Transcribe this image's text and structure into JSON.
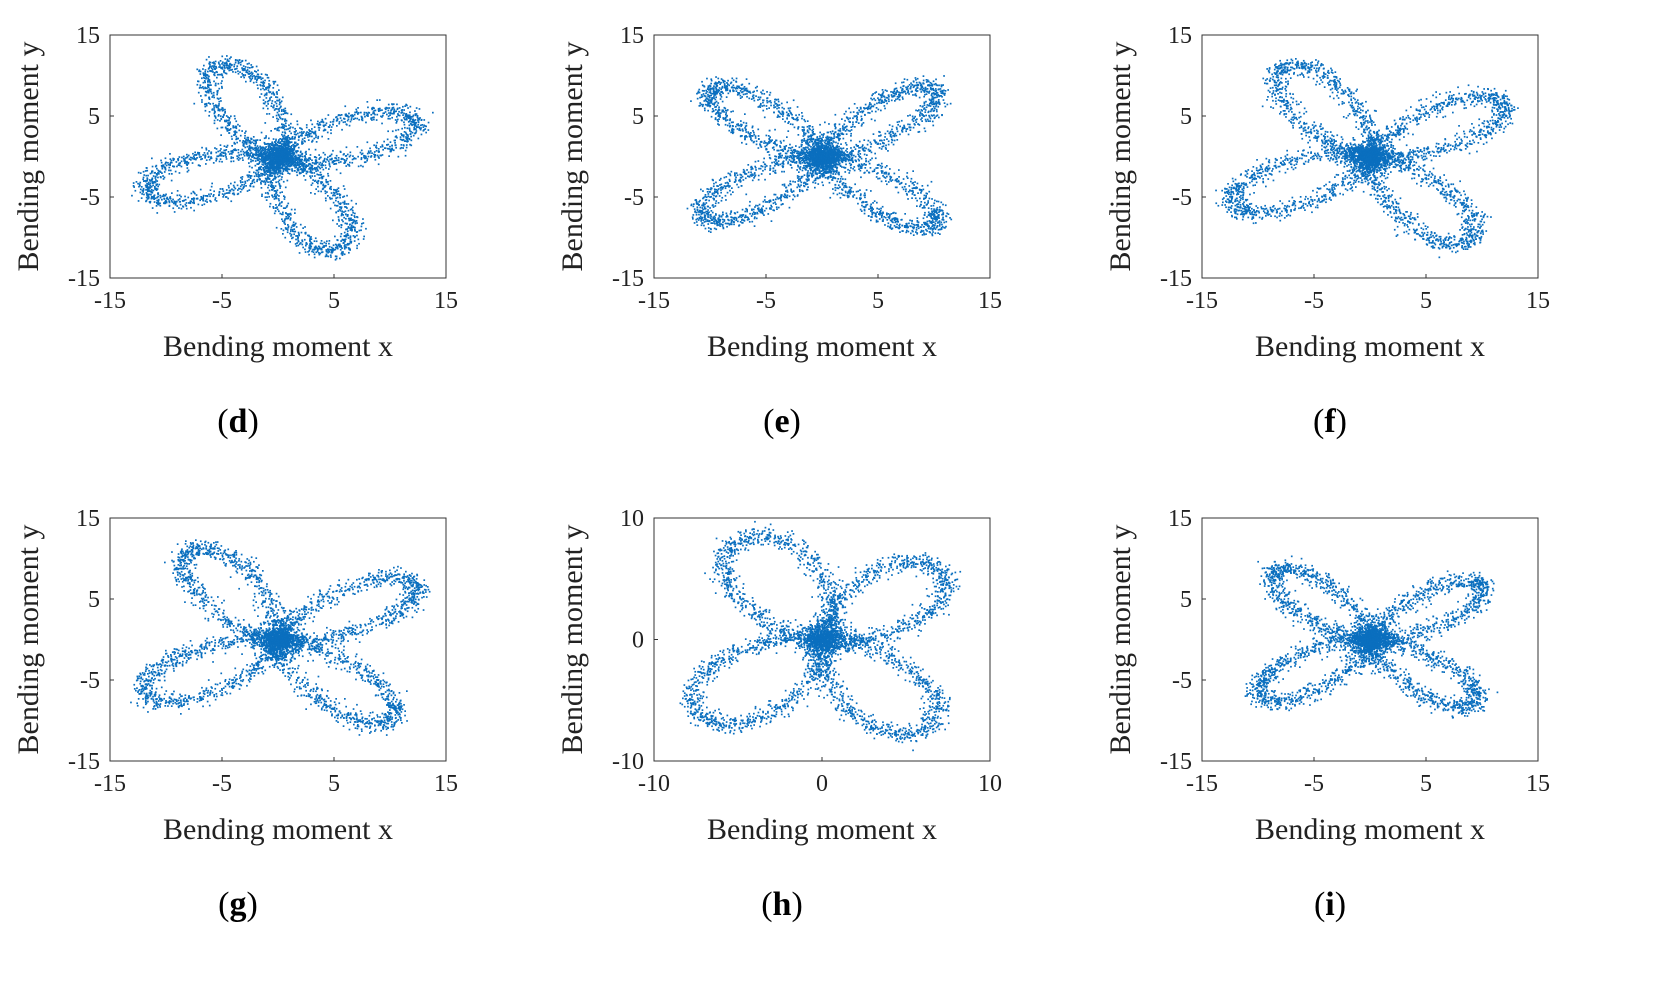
{
  "point_color": "#0a6fbf",
  "chart_data": [
    {
      "id": "d",
      "panel_label": "d",
      "type": "scatter",
      "xlabel": "Bending moment x",
      "ylabel": "Bending moment y",
      "xlim": [
        -15,
        15
      ],
      "ylim": [
        -15,
        15
      ],
      "xticks": [
        "-15",
        "-5",
        "5",
        "15"
      ],
      "yticks": [
        "-15",
        "-5",
        "5",
        "15"
      ],
      "shape": "butterfly",
      "lobes": [
        {
          "angle": 115,
          "length": 12.5,
          "width": 3.2
        },
        {
          "angle": 20,
          "length": 13.0,
          "width": 3.0
        },
        {
          "angle": -65,
          "length": 12.5,
          "width": 3.2
        },
        {
          "angle": -160,
          "length": 12.5,
          "width": 3.0
        }
      ]
    },
    {
      "id": "e",
      "panel_label": "e",
      "type": "scatter",
      "xlabel": "Bending moment x",
      "ylabel": "Bending moment y",
      "xlim": [
        -15,
        15
      ],
      "ylim": [
        -15,
        15
      ],
      "xticks": [
        "-15",
        "-5",
        "5",
        "15"
      ],
      "yticks": [
        "-15",
        "-5",
        "5",
        "15"
      ],
      "shape": "butterfly",
      "lobes": [
        {
          "angle": 140,
          "length": 13.0,
          "width": 2.5
        },
        {
          "angle": 40,
          "length": 13.0,
          "width": 2.5
        },
        {
          "angle": -40,
          "length": 13.0,
          "width": 2.6
        },
        {
          "angle": -145,
          "length": 13.0,
          "width": 2.6
        }
      ]
    },
    {
      "id": "f",
      "panel_label": "f",
      "type": "scatter",
      "xlabel": "Bending moment x",
      "ylabel": "Bending moment y",
      "xlim": [
        -15,
        15
      ],
      "ylim": [
        -15,
        15
      ],
      "xticks": [
        "-15",
        "-5",
        "5",
        "15"
      ],
      "yticks": [
        "-15",
        "-5",
        "5",
        "15"
      ],
      "shape": "butterfly",
      "lobes": [
        {
          "angle": 125,
          "length": 13.5,
          "width": 3.2
        },
        {
          "angle": 30,
          "length": 13.5,
          "width": 3.0
        },
        {
          "angle": -50,
          "length": 13.5,
          "width": 3.2
        },
        {
          "angle": -155,
          "length": 13.5,
          "width": 3.2
        }
      ]
    },
    {
      "id": "g",
      "panel_label": "g",
      "type": "scatter",
      "xlabel": "Bending moment x",
      "ylabel": "Bending moment y",
      "xlim": [
        -15,
        15
      ],
      "ylim": [
        -15,
        15
      ],
      "xticks": [
        "-15",
        "-5",
        "5",
        "15"
      ],
      "yticks": [
        "-15",
        "-5",
        "5",
        "15"
      ],
      "shape": "butterfly",
      "lobes": [
        {
          "angle": 125,
          "length": 13.5,
          "width": 3.2
        },
        {
          "angle": 30,
          "length": 14.0,
          "width": 3.0
        },
        {
          "angle": -45,
          "length": 14.0,
          "width": 3.2
        },
        {
          "angle": -150,
          "length": 13.5,
          "width": 3.2
        }
      ]
    },
    {
      "id": "h",
      "panel_label": "h",
      "type": "scatter",
      "xlabel": "Bending moment x",
      "ylabel": "Bending moment y",
      "xlim": [
        -10,
        10
      ],
      "ylim": [
        -10,
        10
      ],
      "xticks": [
        "-10",
        "0",
        "10"
      ],
      "yticks": [
        "-10",
        "0",
        "10"
      ],
      "shape": "butterfly",
      "lobes": [
        {
          "angle": 120,
          "length": 9.5,
          "width": 3.2
        },
        {
          "angle": 40,
          "length": 9.0,
          "width": 2.8
        },
        {
          "angle": -50,
          "length": 9.5,
          "width": 3.0
        },
        {
          "angle": -140,
          "length": 9.5,
          "width": 3.2
        }
      ]
    },
    {
      "id": "i",
      "panel_label": "i",
      "type": "scatter",
      "xlabel": "Bending moment x",
      "ylabel": "Bending moment y",
      "xlim": [
        -15,
        15
      ],
      "ylim": [
        -15,
        15
      ],
      "xticks": [
        "-15",
        "-5",
        "5",
        "15"
      ],
      "yticks": [
        "-15",
        "-5",
        "5",
        "15"
      ],
      "shape": "butterfly",
      "lobes": [
        {
          "angle": 135,
          "length": 12.0,
          "width": 2.6
        },
        {
          "angle": 35,
          "length": 12.0,
          "width": 2.5
        },
        {
          "angle": -40,
          "length": 12.0,
          "width": 2.6
        },
        {
          "angle": -145,
          "length": 12.0,
          "width": 2.7
        }
      ]
    }
  ]
}
